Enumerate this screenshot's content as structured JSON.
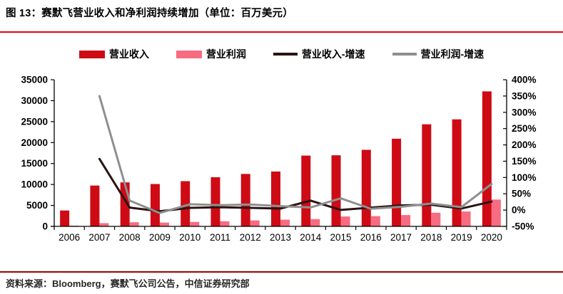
{
  "header": {
    "title": "图 13：赛默飞营业收入和净利润持续增加（单位：百万美元）"
  },
  "footer": {
    "source": "资料来源：Bloomberg，赛默飞公司公告，中信证券研究部"
  },
  "colors": {
    "title_rule": "#e60012",
    "source_rule": "#a00000",
    "axis": "#000000",
    "revenue_bar": "#ce0b15",
    "profit_bar": "#f76c80",
    "revenue_growth_line": "#2a1413",
    "profit_growth_line": "#8f8f8f"
  },
  "chart_data": {
    "type": "bar",
    "subtype": "combo-bar-line-dual-axis",
    "title": "赛默飞营业收入和净利润持续增加（单位：百万美元）",
    "categories": [
      "2006",
      "2007",
      "2008",
      "2009",
      "2010",
      "2011",
      "2012",
      "2013",
      "2014",
      "2015",
      "2016",
      "2017",
      "2018",
      "2019",
      "2020"
    ],
    "series": [
      {
        "name": "营业收入",
        "type": "bar",
        "axis": "left",
        "color": "#ce0b15",
        "values": [
          3792,
          9746,
          10498,
          10110,
          10789,
          11726,
          12510,
          13090,
          16890,
          16965,
          18274,
          20918,
          24358,
          25542,
          32218
        ]
      },
      {
        "name": "营业利润",
        "type": "bar",
        "axis": "left",
        "color": "#f76c80",
        "values": [
          170,
          765,
          985,
          900,
          1060,
          1220,
          1430,
          1600,
          1730,
          2360,
          2450,
          2700,
          3250,
          3550,
          6400
        ]
      },
      {
        "name": "营业收入-增速",
        "type": "line",
        "axis": "right",
        "color": "#2a1413",
        "values": [
          null,
          157,
          7.7,
          -3.7,
          6.7,
          8.7,
          6.7,
          4.6,
          29,
          0.4,
          7.7,
          14.5,
          16.4,
          4.9,
          26.1
        ]
      },
      {
        "name": "营业利润-增速",
        "type": "line",
        "axis": "right",
        "color": "#8f8f8f",
        "values": [
          null,
          350,
          29,
          -9,
          18,
          15,
          17,
          12,
          8,
          36,
          4,
          10,
          20,
          9,
          80
        ]
      }
    ],
    "left_axis": {
      "min": 0,
      "max": 35000,
      "step": 5000
    },
    "right_axis": {
      "min": -50,
      "max": 400,
      "step": 50,
      "suffix": "%"
    },
    "legend_position": "top",
    "grid": "off"
  }
}
